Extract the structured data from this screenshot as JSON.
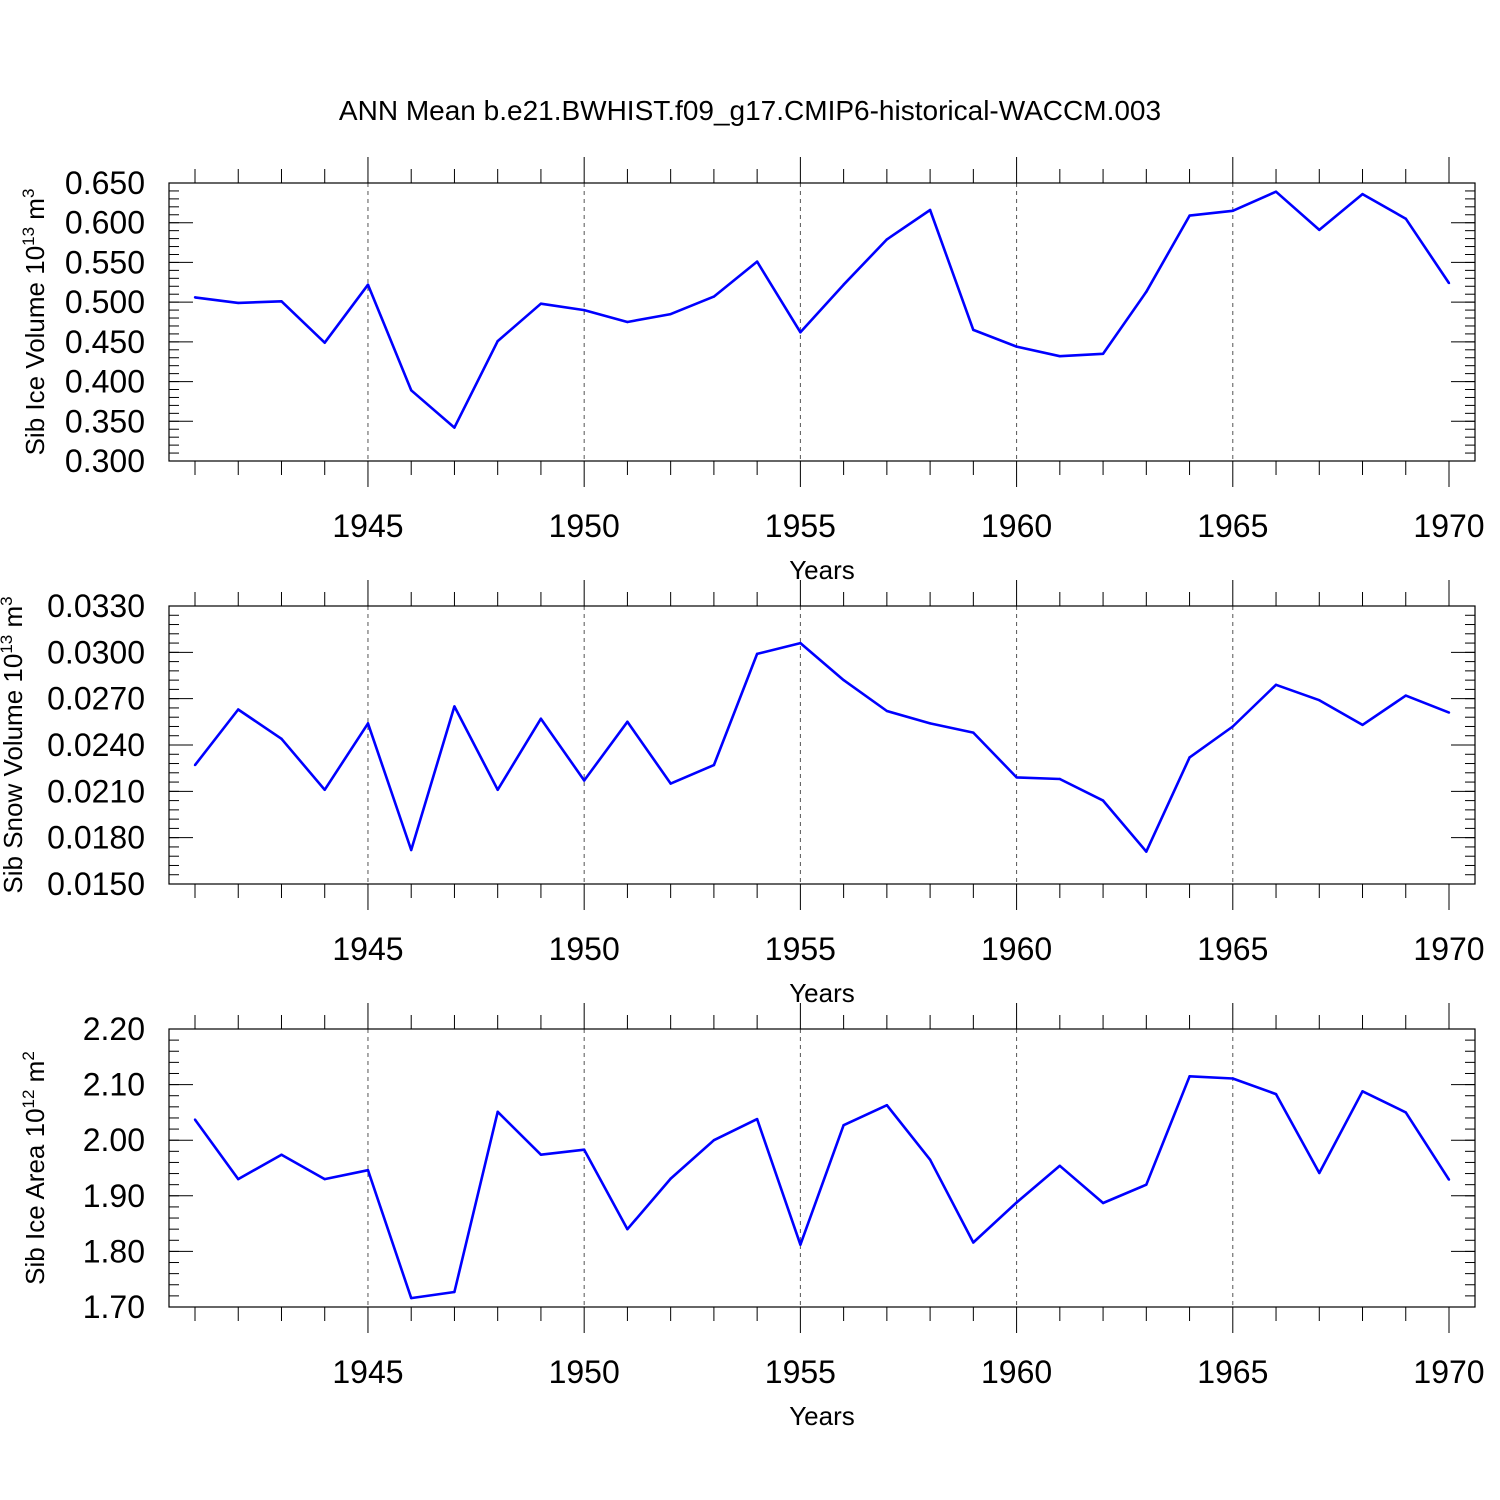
{
  "title": "ANN Mean b.e21.BWHIST.f09_g17.CMIP6-historical-WACCM.003",
  "line_color": "#0000ff",
  "chart_data": [
    {
      "type": "line",
      "ylabel": {
        "base": "Sib Ice Volume 10",
        "exp": "13",
        "unit": " m",
        "unit_exp": "3"
      },
      "xlabel": "Years",
      "ylim": [
        0.3,
        0.65
      ],
      "yticks": [
        0.3,
        0.35,
        0.4,
        0.45,
        0.5,
        0.55,
        0.6,
        0.65
      ],
      "ytick_labels": [
        "0.300",
        "0.350",
        "0.400",
        "0.450",
        "0.500",
        "0.550",
        "0.600",
        "0.650"
      ],
      "yminor": 0.01,
      "xlim": [
        1941,
        1970
      ],
      "xticks": [
        1945,
        1950,
        1955,
        1960,
        1965,
        1970
      ],
      "xtick_labels": [
        "1945",
        "1950",
        "1955",
        "1960",
        "1965",
        "1970"
      ],
      "grid_x": true,
      "x": [
        1941,
        1942,
        1943,
        1944,
        1945,
        1946,
        1947,
        1948,
        1949,
        1950,
        1951,
        1952,
        1953,
        1954,
        1955,
        1956,
        1957,
        1958,
        1959,
        1960,
        1961,
        1962,
        1963,
        1964,
        1965,
        1966,
        1967,
        1968,
        1969,
        1970
      ],
      "values": [
        0.506,
        0.499,
        0.501,
        0.449,
        0.522,
        0.389,
        0.342,
        0.451,
        0.498,
        0.49,
        0.475,
        0.485,
        0.507,
        0.551,
        0.462,
        0.522,
        0.579,
        0.616,
        0.465,
        0.444,
        0.432,
        0.435,
        0.513,
        0.609,
        0.615,
        0.639,
        0.591,
        0.636,
        0.605,
        0.524
      ]
    },
    {
      "type": "line",
      "ylabel": {
        "base": "Sib Snow Volume 10",
        "exp": "13",
        "unit": " m",
        "unit_exp": "3"
      },
      "xlabel": "Years",
      "ylim": [
        0.015,
        0.033
      ],
      "yticks": [
        0.015,
        0.018,
        0.021,
        0.024,
        0.027,
        0.03,
        0.033
      ],
      "ytick_labels": [
        "0.0150",
        "0.0180",
        "0.0210",
        "0.0240",
        "0.0270",
        "0.0300",
        "0.0330"
      ],
      "yminor": 0.0006,
      "xlim": [
        1941,
        1970
      ],
      "xticks": [
        1945,
        1950,
        1955,
        1960,
        1965,
        1970
      ],
      "xtick_labels": [
        "1945",
        "1950",
        "1955",
        "1960",
        "1965",
        "1970"
      ],
      "grid_x": true,
      "x": [
        1941,
        1942,
        1943,
        1944,
        1945,
        1946,
        1947,
        1948,
        1949,
        1950,
        1951,
        1952,
        1953,
        1954,
        1955,
        1956,
        1957,
        1958,
        1959,
        1960,
        1961,
        1962,
        1963,
        1964,
        1965,
        1966,
        1967,
        1968,
        1969,
        1970
      ],
      "values": [
        0.0227,
        0.0263,
        0.0244,
        0.0211,
        0.0254,
        0.0172,
        0.0265,
        0.0211,
        0.0257,
        0.0217,
        0.0255,
        0.0215,
        0.0227,
        0.0299,
        0.0306,
        0.0282,
        0.0262,
        0.0254,
        0.0248,
        0.0219,
        0.0218,
        0.0204,
        0.0171,
        0.0232,
        0.0252,
        0.0279,
        0.0269,
        0.0253,
        0.0272,
        0.0261
      ]
    },
    {
      "type": "line",
      "ylabel": {
        "base": "Sib Ice Area 10",
        "exp": "12",
        "unit": " m",
        "unit_exp": "2"
      },
      "xlabel": "Years",
      "ylim": [
        1.7,
        2.2
      ],
      "yticks": [
        1.7,
        1.8,
        1.9,
        2.0,
        2.1,
        2.2
      ],
      "ytick_labels": [
        "1.70",
        "1.80",
        "1.90",
        "2.00",
        "2.10",
        "2.20"
      ],
      "yminor": 0.02,
      "xlim": [
        1941,
        1970
      ],
      "xticks": [
        1945,
        1950,
        1955,
        1960,
        1965,
        1970
      ],
      "xtick_labels": [
        "1945",
        "1950",
        "1955",
        "1960",
        "1965",
        "1970"
      ],
      "grid_x": true,
      "x": [
        1941,
        1942,
        1943,
        1944,
        1945,
        1946,
        1947,
        1948,
        1949,
        1950,
        1951,
        1952,
        1953,
        1954,
        1955,
        1956,
        1957,
        1958,
        1959,
        1960,
        1961,
        1962,
        1963,
        1964,
        1965,
        1966,
        1967,
        1968,
        1969,
        1970
      ],
      "values": [
        2.037,
        1.93,
        1.974,
        1.93,
        1.946,
        1.716,
        1.727,
        2.051,
        1.974,
        1.983,
        1.84,
        1.931,
        2.0,
        2.038,
        1.812,
        2.027,
        2.063,
        1.965,
        1.816,
        1.888,
        1.954,
        1.887,
        1.92,
        2.115,
        2.111,
        2.083,
        1.941,
        2.088,
        2.05,
        1.929
      ]
    }
  ]
}
